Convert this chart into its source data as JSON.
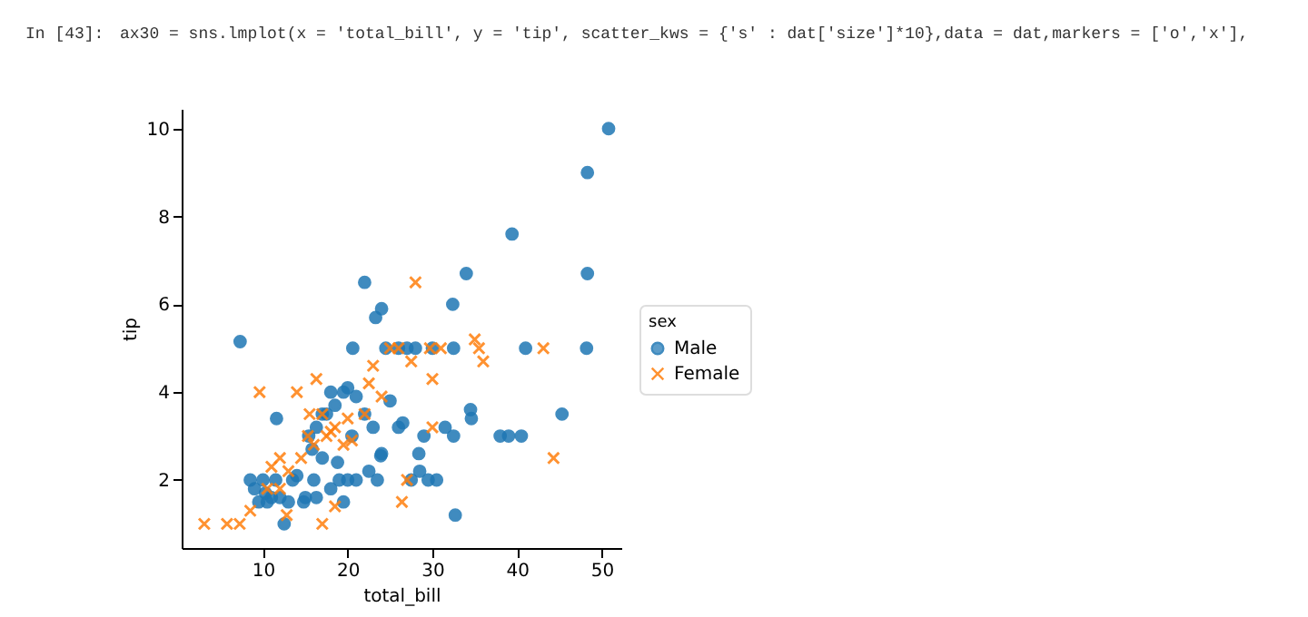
{
  "chart_data": {
    "type": "scatter",
    "xlabel": "total_bill",
    "ylabel": "tip",
    "legend_title": "sex",
    "legend": "right",
    "grid": false,
    "annotations": [
      "In [43]:",
      "ax30 = sns.lmplot(x = 'total_bill', y = 'tip', scatter_kws = {'s' : dat['size']*10},data = dat,markers = ['o','x'],"
    ],
    "xlim": [
      0.4,
      52.3
    ],
    "ylim": [
      0.45,
      10.45
    ],
    "xticks": [
      10,
      20,
      30,
      40,
      50
    ],
    "yticks": [
      2,
      4,
      6,
      8,
      10
    ],
    "series": [
      {
        "name": "Male",
        "color": "#1f77b4",
        "marker": "circle",
        "x": [
          7.3,
          20.6,
          24.5,
          22,
          23.3,
          24,
          26,
          27,
          28,
          30,
          32.5,
          41,
          48.2,
          48.3,
          50.8,
          39.4,
          48.3,
          32.4,
          34,
          11.6,
          15.4,
          16.3,
          17,
          18,
          18.5,
          19.5,
          20,
          21,
          22,
          23,
          25,
          26,
          24,
          22.5,
          19,
          20,
          21,
          23.5,
          27.5,
          28.5,
          29.5,
          30.5,
          26.5,
          29,
          31.5,
          32.5,
          34.5,
          34.6,
          38,
          39,
          40.5,
          45.3,
          28.4,
          32.7,
          23.9,
          10,
          10.3,
          10.5,
          11,
          12,
          13,
          13.5,
          14,
          12.5,
          15,
          16,
          17,
          18,
          19.5,
          9.5,
          11.5,
          8.5,
          9,
          16.3,
          14.8,
          17.5,
          20.5,
          15.8,
          18.8
        ],
        "values": [
          5.15,
          5,
          5,
          6.5,
          5.7,
          5.9,
          5,
          5,
          5,
          5,
          5,
          5,
          5,
          9,
          10,
          7.6,
          6.7,
          6,
          6.7,
          3.4,
          3,
          3.2,
          3.5,
          4,
          3.7,
          4,
          4.1,
          3.9,
          3.5,
          3.2,
          3.8,
          3.2,
          2.6,
          2.2,
          2,
          2,
          2,
          2,
          2,
          2.2,
          2,
          2,
          3.3,
          3,
          3.2,
          3,
          3.6,
          3.4,
          3,
          3,
          3,
          3.5,
          2.6,
          1.2,
          2.55,
          2,
          1.7,
          1.5,
          1.6,
          1.6,
          1.5,
          2,
          2.1,
          1,
          1.6,
          2,
          2.5,
          1.8,
          1.5,
          1.5,
          2,
          2,
          1.8,
          1.6,
          1.5,
          3.5,
          3,
          2.7,
          2.4
        ]
      },
      {
        "name": "Female",
        "color": "#ff7f0e",
        "marker": "cross",
        "x": [
          3.07,
          5.75,
          7.25,
          8.5,
          12.8,
          17,
          26.4,
          9.6,
          14,
          16.3,
          15.5,
          17,
          18,
          18.5,
          17.5,
          19.5,
          14.5,
          13,
          12,
          11,
          10.5,
          12,
          16,
          20.5,
          22,
          24,
          22.5,
          23,
          25,
          26,
          28,
          30,
          30,
          27,
          27.5,
          35,
          35.5,
          36,
          44.3,
          43.1,
          29.7,
          15.3,
          18.5,
          20,
          31
        ],
        "values": [
          1,
          1,
          1,
          1.3,
          1.2,
          1,
          1.5,
          4,
          4,
          4.3,
          3.5,
          3.5,
          3.1,
          3.2,
          3,
          2.8,
          2.5,
          2.2,
          2.5,
          2.3,
          1.8,
          1.8,
          2.8,
          2.9,
          3.5,
          3.9,
          4.2,
          4.6,
          5,
          5,
          6.5,
          4.3,
          3.2,
          2,
          4.7,
          5.2,
          5,
          4.7,
          2.5,
          5,
          5,
          3,
          1.4,
          3.4,
          5
        ]
      }
    ]
  }
}
